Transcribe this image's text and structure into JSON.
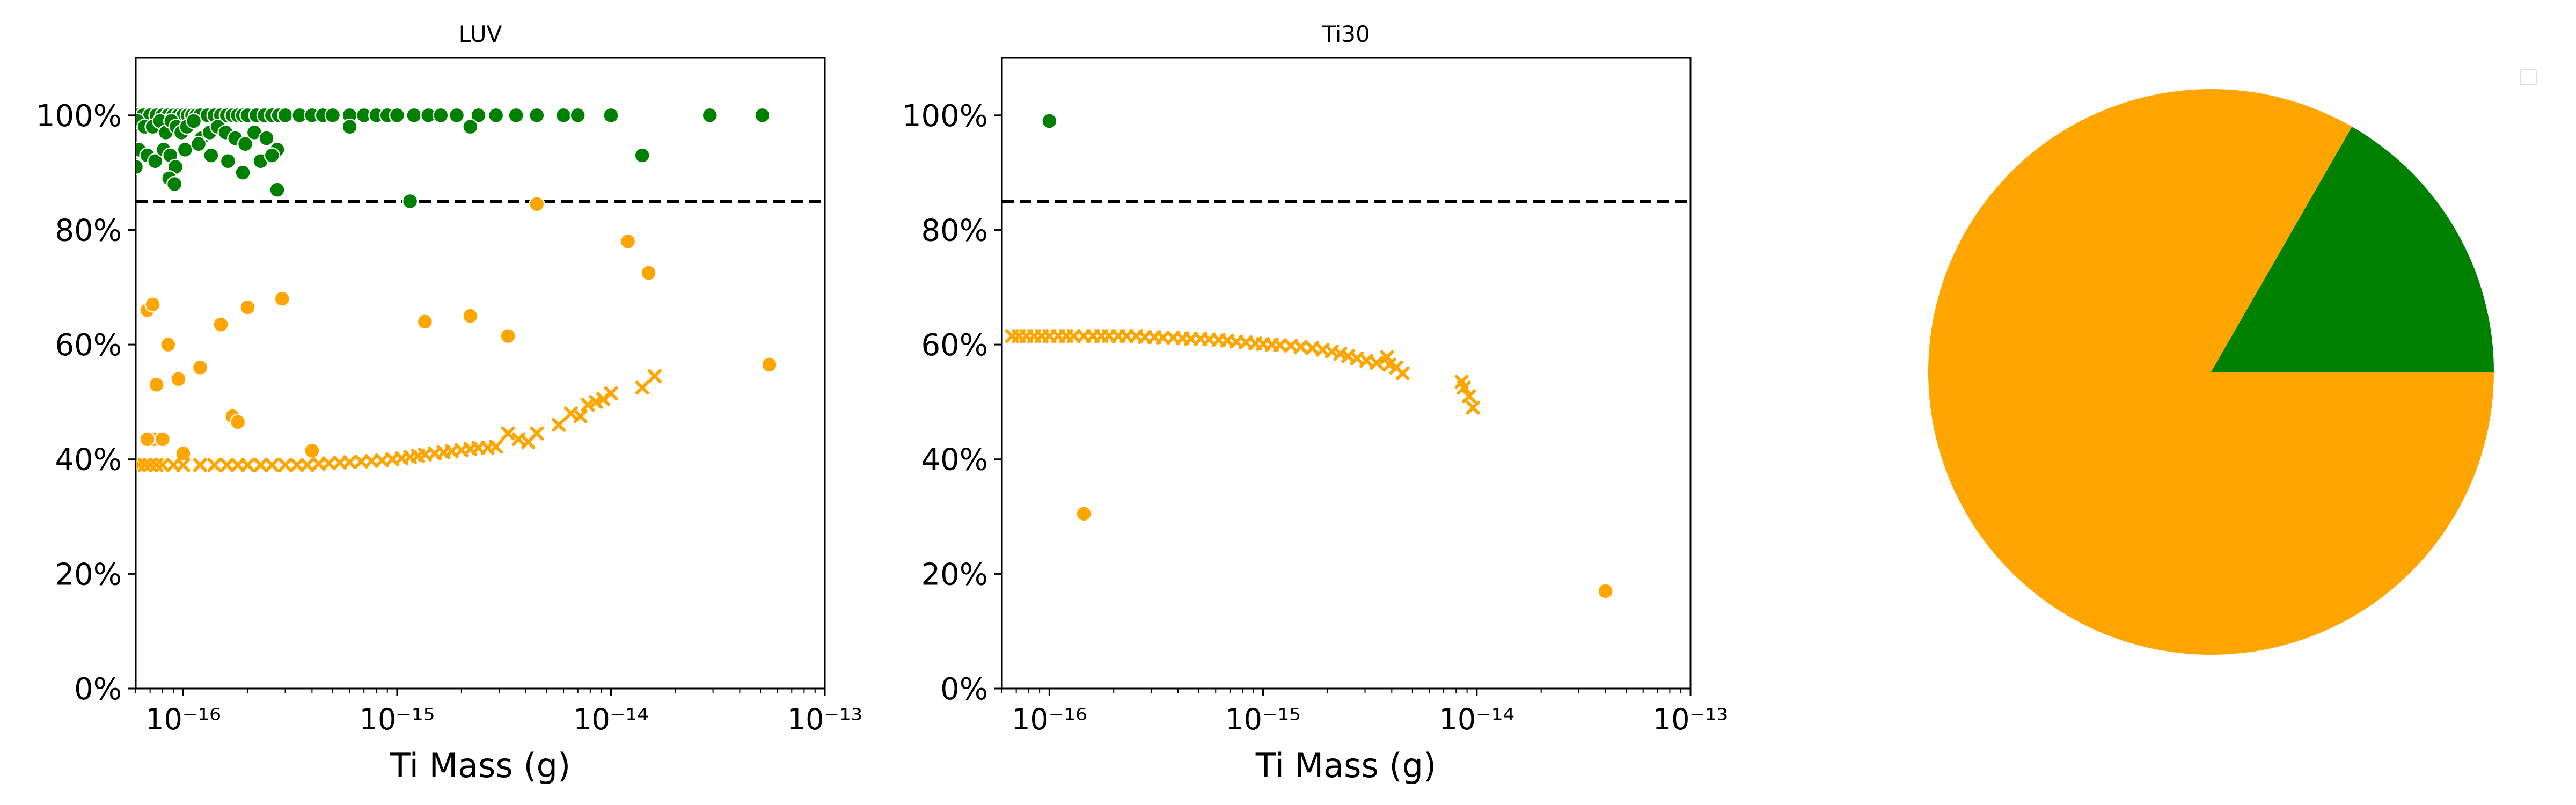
{
  "colors": {
    "green": "#008000",
    "orange": "#FFA500",
    "threshold": "#000000"
  },
  "chart_data": [
    {
      "type": "scatter",
      "title": "LUV",
      "xlabel": "Ti Mass (g)",
      "ylabel": "",
      "x_scale": "log",
      "xlim": [
        6e-17,
        1e-13
      ],
      "ylim": [
        0,
        110
      ],
      "x_tick_labels": [
        "10⁻¹⁶",
        "10⁻¹⁵",
        "10⁻¹⁴",
        "10⁻¹³"
      ],
      "x_tick_values": [
        1e-16,
        1e-15,
        1e-14,
        1e-13
      ],
      "y_tick_labels": [
        "0%",
        "20%",
        "40%",
        "60%",
        "80%",
        "100%"
      ],
      "y_tick_values": [
        0,
        20,
        40,
        60,
        80,
        100
      ],
      "threshold": 85,
      "grid": false,
      "series": [
        {
          "marker": "circle",
          "color": "green",
          "x": [
            6.1e-17,
            6.5e-17,
            7e-17,
            7.5e-17,
            8e-17,
            8.5e-17,
            9e-17,
            9.5e-17,
            1e-16,
            1.05e-16,
            1.1e-16,
            1.15e-16,
            1.2e-16,
            1.3e-16,
            1.4e-16,
            1.5e-16,
            1.6e-16,
            1.7e-16,
            1.8e-16,
            1.9e-16,
            2e-16,
            2.2e-16,
            2.4e-16,
            2.6e-16,
            2.8e-16,
            3e-16,
            3.5e-16,
            4e-16,
            4.5e-16,
            5e-16,
            6e-16,
            7e-16,
            8e-16,
            9e-16,
            1e-15,
            1.2e-15,
            1.4e-15,
            1.6e-15,
            1.9e-15,
            2.4e-15,
            2.9e-15,
            3.6e-15,
            4.5e-15,
            6e-15,
            7e-15,
            1e-14,
            2.9e-14,
            5.1e-14,
            6.1e-17,
            6.6e-17,
            7.2e-17,
            7.8e-17,
            8.3e-17,
            8.8e-17,
            9.3e-17,
            9.8e-17,
            1.04e-16,
            1.12e-16,
            1.22e-16,
            1.33e-16,
            1.45e-16,
            1.58e-16,
            1.75e-16,
            1.95e-16,
            2.15e-16,
            2.45e-16,
            2.75e-16,
            6.2e-17,
            6.8e-17,
            7.4e-17,
            8.1e-17,
            8.7e-17,
            9.2e-17,
            1.02e-16,
            1.18e-16,
            1.35e-16,
            1.62e-16,
            1.9e-16,
            2.3e-16,
            2.6e-16,
            6e-17,
            8.6e-17,
            9.1e-17,
            2.75e-16,
            1.15e-15,
            2.2e-15,
            6e-16,
            1.4e-14
          ],
          "y": [
            100,
            100,
            100,
            100,
            100,
            100,
            100,
            100,
            100,
            100,
            100,
            100,
            100,
            100,
            100,
            100,
            100,
            100,
            100,
            100,
            100,
            100,
            100,
            100,
            100,
            100,
            100,
            100,
            100,
            100,
            100,
            100,
            100,
            100,
            100,
            100,
            100,
            100,
            100,
            100,
            100,
            100,
            100,
            100,
            100,
            100,
            100,
            100,
            99,
            98,
            98,
            99,
            97,
            99,
            98,
            97,
            98,
            99,
            96,
            97,
            98,
            97,
            96,
            95,
            97,
            96,
            94,
            94,
            93,
            92,
            94,
            93,
            91,
            94,
            95,
            93,
            92,
            90,
            92,
            93,
            91,
            89,
            88,
            87,
            85,
            98,
            98,
            93
          ]
        },
        {
          "marker": "circle",
          "color": "orange",
          "x": [
            6.8e-17,
            7.2e-17,
            7.5e-17,
            8.5e-17,
            9.5e-17,
            1.2e-16,
            1.5e-16,
            2e-16,
            2.9e-16,
            1.35e-15,
            2.2e-15,
            3.3e-15,
            4.5e-15,
            1.2e-14,
            1.5e-14,
            5.5e-14,
            1.7e-16,
            1.8e-16,
            7.3e-17,
            8e-17,
            6.8e-17,
            1e-16,
            4e-16
          ],
          "y": [
            66,
            67,
            53,
            60,
            54,
            56,
            63.5,
            66.5,
            68,
            64,
            65,
            61.5,
            84.5,
            78,
            72.5,
            56.5,
            47.5,
            46.5,
            43.5,
            43.5,
            43.5,
            41,
            41.5
          ]
        },
        {
          "marker": "x",
          "color": "orange",
          "x": [
            6.2e-17,
            6.6e-17,
            7e-17,
            7.5e-17,
            8e-17,
            9e-17,
            1e-16,
            1.2e-16,
            1.4e-16,
            1.6e-16,
            1.8e-16,
            2e-16,
            2.3e-16,
            2.6e-16,
            3e-16,
            3.4e-16,
            3.8e-16,
            4.3e-16,
            4.8e-16,
            5.4e-16,
            6e-16,
            6.8e-16,
            7.6e-16,
            8.5e-16,
            9.5e-16,
            1.05e-15,
            1.15e-15,
            1.25e-15,
            1.35e-15,
            1.5e-15,
            1.65e-15,
            1.8e-15,
            2e-15,
            2.2e-15,
            2.4e-15,
            2.65e-15,
            2.9e-15,
            3.3e-15,
            3.7e-15,
            4.1e-15,
            4.5e-15,
            5.7e-15,
            6.5e-15,
            7.2e-15,
            7.8e-15,
            8.5e-15,
            9.2e-15,
            1e-14,
            1.4e-14,
            1.6e-14
          ],
          "y": [
            39,
            39,
            39,
            39,
            39,
            39,
            39,
            39,
            39,
            39,
            39,
            39,
            39,
            39,
            39,
            39,
            39,
            39.2,
            39.3,
            39.4,
            39.5,
            39.6,
            39.7,
            39.8,
            40,
            40.2,
            40.4,
            40.6,
            40.8,
            41,
            41.2,
            41.4,
            41.6,
            41.8,
            42,
            42,
            42.2,
            44.5,
            43.5,
            43,
            44.5,
            46,
            48,
            47.5,
            49.5,
            50,
            50.5,
            51.5,
            52.5,
            54.5
          ]
        }
      ]
    },
    {
      "type": "scatter",
      "title": "Ti30",
      "xlabel": "Ti Mass (g)",
      "ylabel": "",
      "x_scale": "log",
      "xlim": [
        6e-17,
        1e-13
      ],
      "ylim": [
        0,
        110
      ],
      "x_tick_labels": [
        "10⁻¹⁶",
        "10⁻¹⁵",
        "10⁻¹⁴",
        "10⁻¹³"
      ],
      "x_tick_values": [
        1e-16,
        1e-15,
        1e-14,
        1e-13
      ],
      "y_tick_labels": [
        "0%",
        "20%",
        "40%",
        "60%",
        "80%",
        "100%"
      ],
      "y_tick_values": [
        0,
        20,
        40,
        60,
        80,
        100
      ],
      "threshold": 85,
      "grid": false,
      "series": [
        {
          "marker": "circle",
          "color": "green",
          "x": [
            1e-16
          ],
          "y": [
            99
          ]
        },
        {
          "marker": "circle",
          "color": "orange",
          "x": [
            1.45e-16,
            4e-14
          ],
          "y": [
            30.5,
            17
          ]
        },
        {
          "marker": "x",
          "color": "orange",
          "x": [
            6.7e-17,
            7.2e-17,
            7.8e-17,
            8.5e-17,
            9.2e-17,
            1e-16,
            1.1e-16,
            1.2e-16,
            1.3e-16,
            1.45e-16,
            1.6e-16,
            1.75e-16,
            1.9e-16,
            2.1e-16,
            2.3e-16,
            2.55e-16,
            2.8e-16,
            3.1e-16,
            3.4e-16,
            3.8e-16,
            4.2e-16,
            4.6e-16,
            5.1e-16,
            5.6e-16,
            6.2e-16,
            6.8e-16,
            7.5e-16,
            8.3e-16,
            9.2e-16,
            1e-15,
            1.1e-15,
            1.2e-15,
            1.35e-15,
            1.5e-15,
            1.7e-15,
            1.9e-15,
            2.1e-15,
            2.3e-15,
            2.5e-15,
            2.75e-15,
            3.05e-15,
            3.4e-15,
            3.8e-15,
            3.9e-15,
            4.2e-15,
            4.5e-15,
            8.5e-15,
            8.7e-15,
            9.2e-15,
            9.6e-15
          ],
          "y": [
            61.5,
            61.5,
            61.5,
            61.5,
            61.5,
            61.5,
            61.5,
            61.5,
            61.5,
            61.5,
            61.5,
            61.5,
            61.5,
            61.5,
            61.5,
            61.5,
            61.3,
            61.3,
            61.2,
            61.2,
            61.1,
            61,
            61,
            60.9,
            60.8,
            60.7,
            60.5,
            60.4,
            60.2,
            60.1,
            60,
            59.9,
            59.8,
            59.6,
            59.4,
            59.1,
            58.8,
            58.4,
            58,
            57.6,
            57.2,
            56.8,
            57.8,
            56.5,
            56,
            55,
            53.5,
            52.5,
            51,
            49
          ]
        }
      ]
    },
    {
      "type": "pie",
      "slices": [
        {
          "color": "green",
          "value": 16.7
        },
        {
          "color": "orange",
          "value": 83.3
        }
      ],
      "start_angle": 0,
      "legend": "top-right",
      "legend_entries": []
    }
  ]
}
